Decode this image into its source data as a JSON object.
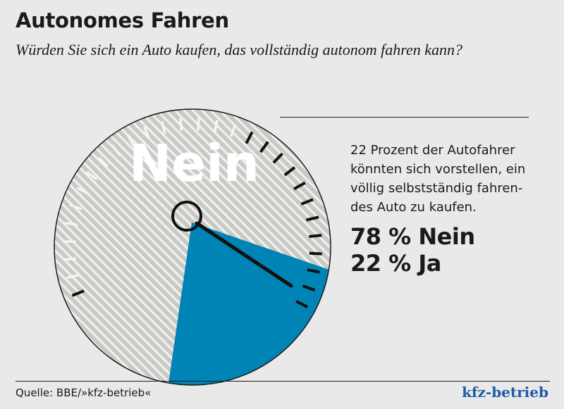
{
  "header": {
    "title": "Autonomes Fahren",
    "subtitle": "Würden Sie sich ein Auto kaufen, das vollständig autonom fahren kann?"
  },
  "chart_data": {
    "type": "pie",
    "title": "Autonomes Fahren",
    "subtitle": "Würden Sie sich ein Auto kaufen, das vollständig autonom fahren kann?",
    "unit": "%",
    "categories": [
      "Nein",
      "Ja"
    ],
    "values": [
      78,
      22
    ],
    "gauge_label": "Nein",
    "colors": {
      "Nein": "#c9c9c6",
      "Ja": "#0083b5",
      "hatch": "#f2f2f0",
      "needle": "#111111",
      "rim": "#1a1a1a"
    }
  },
  "annotation": {
    "lines": [
      "22 Prozent der Autofahrer",
      "könnten sich vorstellen, ein",
      "völlig selbstständig fahren-",
      "des Auto zu kaufen."
    ]
  },
  "results": [
    {
      "label": "78 % Nein"
    },
    {
      "label": "22 % Ja"
    }
  ],
  "footer": {
    "source": "Quelle: BBE/»kfz-betrieb«",
    "brand": "kfz-betrieb"
  }
}
